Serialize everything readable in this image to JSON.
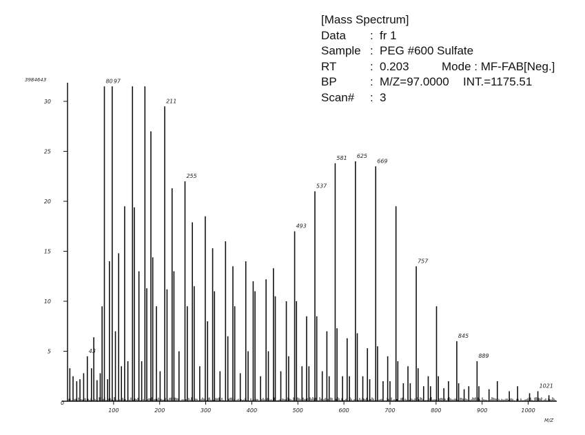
{
  "spectrum_info": {
    "title": "[Mass Spectrum]",
    "data_label": "Data",
    "data_value": "fr 1",
    "sample_label": "Sample",
    "sample_value": "PEG #600 Sulfate",
    "rt_label": "RT",
    "rt_value": "0.203",
    "mode_label": "Mode",
    "mode_value": "MF-FAB[Neg.]",
    "bp_label": "BP",
    "bp_mz": "M/Z=97.0000",
    "bp_int": "INT.=1175.51",
    "scan_label": "Scan#",
    "scan_value": "3"
  },
  "chart_data": {
    "type": "bar",
    "title": "[Mass Spectrum]",
    "xlabel": "M/Z",
    "ylabel": "",
    "max_intensity_label": "3984643",
    "xlim": [
      0,
      1062
    ],
    "ylim": [
      0,
      32
    ],
    "x_ticks": [
      100,
      200,
      300,
      400,
      500,
      600,
      700,
      800,
      900,
      1000
    ],
    "y_ticks": [
      5,
      10,
      15,
      20,
      25,
      30
    ],
    "y_tick_labels": [
      "5",
      "10",
      "15",
      "20",
      "25",
      "30"
    ],
    "y_zero_label": "0",
    "grid": false,
    "peaks": [
      {
        "mz": 5,
        "intensity": 3.3
      },
      {
        "mz": 12,
        "intensity": 2.5
      },
      {
        "mz": 20,
        "intensity": 2.0
      },
      {
        "mz": 27,
        "intensity": 2.2
      },
      {
        "mz": 35,
        "intensity": 2.8
      },
      {
        "mz": 43,
        "intensity": 4.5,
        "label": "43"
      },
      {
        "mz": 52,
        "intensity": 3.3
      },
      {
        "mz": 57,
        "intensity": 6.4
      },
      {
        "mz": 64,
        "intensity": 2.1
      },
      {
        "mz": 71,
        "intensity": 2.8
      },
      {
        "mz": 75,
        "intensity": 9.5
      },
      {
        "mz": 80,
        "intensity": 31.5,
        "label": "80"
      },
      {
        "mz": 87,
        "intensity": 2.2
      },
      {
        "mz": 91,
        "intensity": 14.0
      },
      {
        "mz": 97,
        "intensity": 31.5,
        "label": "97"
      },
      {
        "mz": 104,
        "intensity": 7.0
      },
      {
        "mz": 111,
        "intensity": 14.8
      },
      {
        "mz": 117,
        "intensity": 3.5
      },
      {
        "mz": 124,
        "intensity": 19.5
      },
      {
        "mz": 131,
        "intensity": 4.0
      },
      {
        "mz": 141,
        "intensity": 31.5
      },
      {
        "mz": 145,
        "intensity": 19.4
      },
      {
        "mz": 155,
        "intensity": 13.0
      },
      {
        "mz": 161,
        "intensity": 4.0
      },
      {
        "mz": 168,
        "intensity": 31.5
      },
      {
        "mz": 172,
        "intensity": 11.3
      },
      {
        "mz": 181,
        "intensity": 27.0
      },
      {
        "mz": 185,
        "intensity": 14.4
      },
      {
        "mz": 193,
        "intensity": 9.5
      },
      {
        "mz": 201,
        "intensity": 3.0
      },
      {
        "mz": 211,
        "intensity": 29.5,
        "label": "211"
      },
      {
        "mz": 216,
        "intensity": 11.2
      },
      {
        "mz": 227,
        "intensity": 21.3
      },
      {
        "mz": 231,
        "intensity": 13.0
      },
      {
        "mz": 242,
        "intensity": 5.0
      },
      {
        "mz": 255,
        "intensity": 22.0,
        "label": "255"
      },
      {
        "mz": 260,
        "intensity": 9.5
      },
      {
        "mz": 271,
        "intensity": 17.9
      },
      {
        "mz": 275,
        "intensity": 11.5
      },
      {
        "mz": 287,
        "intensity": 3.5
      },
      {
        "mz": 299,
        "intensity": 18.5
      },
      {
        "mz": 304,
        "intensity": 8.0
      },
      {
        "mz": 315,
        "intensity": 15.3
      },
      {
        "mz": 319,
        "intensity": 11.0
      },
      {
        "mz": 331,
        "intensity": 3.0
      },
      {
        "mz": 343,
        "intensity": 16.0
      },
      {
        "mz": 348,
        "intensity": 6.5
      },
      {
        "mz": 359,
        "intensity": 13.5
      },
      {
        "mz": 363,
        "intensity": 9.5
      },
      {
        "mz": 375,
        "intensity": 2.8
      },
      {
        "mz": 387,
        "intensity": 14.0
      },
      {
        "mz": 392,
        "intensity": 5.0
      },
      {
        "mz": 403,
        "intensity": 12.0
      },
      {
        "mz": 407,
        "intensity": 11.0
      },
      {
        "mz": 419,
        "intensity": 2.5
      },
      {
        "mz": 431,
        "intensity": 12.2
      },
      {
        "mz": 436,
        "intensity": 5.0
      },
      {
        "mz": 447,
        "intensity": 13.3
      },
      {
        "mz": 451,
        "intensity": 10.5
      },
      {
        "mz": 463,
        "intensity": 3.0
      },
      {
        "mz": 475,
        "intensity": 10.0
      },
      {
        "mz": 480,
        "intensity": 4.5
      },
      {
        "mz": 493,
        "intensity": 17.0,
        "label": "493"
      },
      {
        "mz": 497,
        "intensity": 10.0
      },
      {
        "mz": 509,
        "intensity": 3.5
      },
      {
        "mz": 519,
        "intensity": 8.5
      },
      {
        "mz": 524,
        "intensity": 3.5
      },
      {
        "mz": 537,
        "intensity": 21.0,
        "label": "537"
      },
      {
        "mz": 541,
        "intensity": 8.5
      },
      {
        "mz": 553,
        "intensity": 3.0
      },
      {
        "mz": 563,
        "intensity": 7.0
      },
      {
        "mz": 568,
        "intensity": 2.5
      },
      {
        "mz": 581,
        "intensity": 23.8,
        "label": "581"
      },
      {
        "mz": 585,
        "intensity": 7.3
      },
      {
        "mz": 597,
        "intensity": 2.5
      },
      {
        "mz": 607,
        "intensity": 6.3
      },
      {
        "mz": 612,
        "intensity": 2.5
      },
      {
        "mz": 625,
        "intensity": 24.0,
        "label": "625"
      },
      {
        "mz": 629,
        "intensity": 6.8
      },
      {
        "mz": 641,
        "intensity": 2.5
      },
      {
        "mz": 651,
        "intensity": 5.3
      },
      {
        "mz": 656,
        "intensity": 2.2
      },
      {
        "mz": 669,
        "intensity": 23.5,
        "label": "669"
      },
      {
        "mz": 673,
        "intensity": 5.5
      },
      {
        "mz": 685,
        "intensity": 2.0
      },
      {
        "mz": 695,
        "intensity": 4.5
      },
      {
        "mz": 700,
        "intensity": 2.0
      },
      {
        "mz": 713,
        "intensity": 19.5
      },
      {
        "mz": 717,
        "intensity": 4.0
      },
      {
        "mz": 729,
        "intensity": 1.8
      },
      {
        "mz": 739,
        "intensity": 3.5
      },
      {
        "mz": 744,
        "intensity": 1.8
      },
      {
        "mz": 757,
        "intensity": 13.5,
        "label": "757"
      },
      {
        "mz": 761,
        "intensity": 3.3
      },
      {
        "mz": 773,
        "intensity": 1.5
      },
      {
        "mz": 783,
        "intensity": 2.5
      },
      {
        "mz": 788,
        "intensity": 1.5
      },
      {
        "mz": 801,
        "intensity": 9.5
      },
      {
        "mz": 805,
        "intensity": 2.5
      },
      {
        "mz": 817,
        "intensity": 1.3
      },
      {
        "mz": 827,
        "intensity": 2.0
      },
      {
        "mz": 845,
        "intensity": 6.0,
        "label": "845"
      },
      {
        "mz": 849,
        "intensity": 1.8
      },
      {
        "mz": 861,
        "intensity": 1.2
      },
      {
        "mz": 871,
        "intensity": 1.5
      },
      {
        "mz": 889,
        "intensity": 4.0,
        "label": "889"
      },
      {
        "mz": 893,
        "intensity": 1.5
      },
      {
        "mz": 915,
        "intensity": 1.2
      },
      {
        "mz": 933,
        "intensity": 2.0
      },
      {
        "mz": 959,
        "intensity": 1.0
      },
      {
        "mz": 977,
        "intensity": 1.5
      },
      {
        "mz": 1003,
        "intensity": 0.8
      },
      {
        "mz": 1021,
        "intensity": 1.0,
        "label": "1021"
      },
      {
        "mz": 1045,
        "intensity": 0.6
      }
    ]
  }
}
